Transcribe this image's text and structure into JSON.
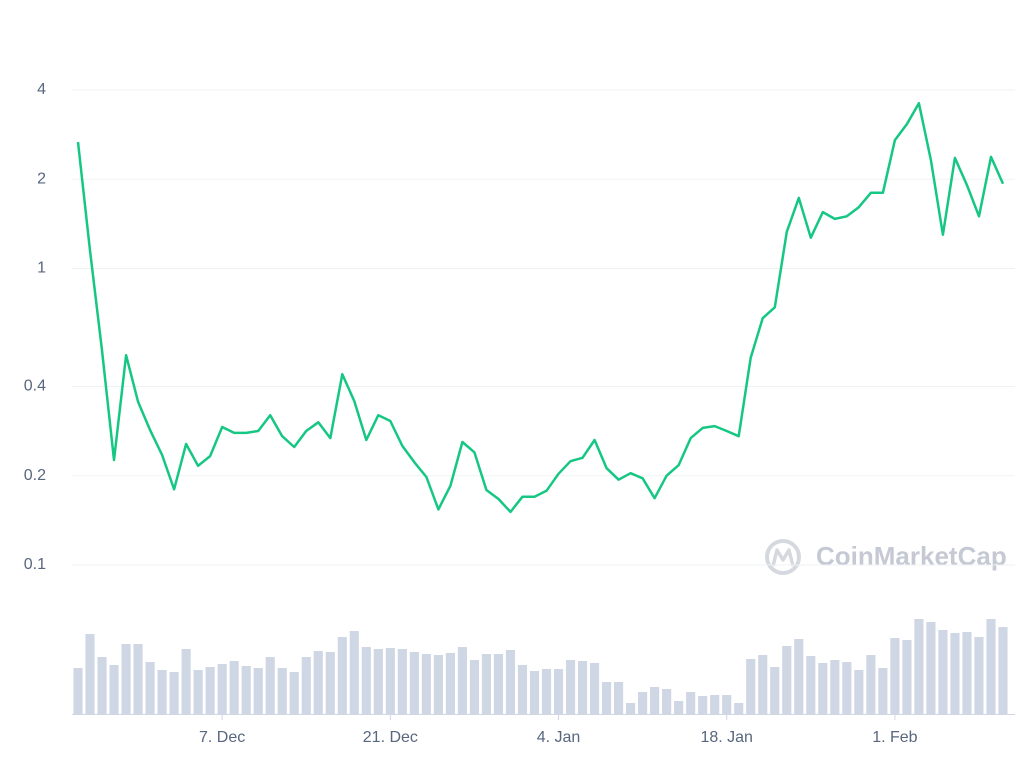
{
  "chart_data": {
    "type": "line",
    "watermark": "CoinMarketCap",
    "x": [
      "25. Nov",
      "26. Nov",
      "27. Nov",
      "28. Nov",
      "29. Nov",
      "30. Nov",
      "1. Dec",
      "2. Dec",
      "3. Dec",
      "4. Dec",
      "5. Dec",
      "6. Dec",
      "7. Dec",
      "8. Dec",
      "9. Dec",
      "10. Dec",
      "11. Dec",
      "12. Dec",
      "13. Dec",
      "14. Dec",
      "15. Dec",
      "16. Dec",
      "17. Dec",
      "18. Dec",
      "19. Dec",
      "20. Dec",
      "21. Dec",
      "22. Dec",
      "23. Dec",
      "24. Dec",
      "25. Dec",
      "26. Dec",
      "27. Dec",
      "28. Dec",
      "29. Dec",
      "30. Dec",
      "31. Dec",
      "1. Jan",
      "2. Jan",
      "3. Jan",
      "4. Jan",
      "5. Jan",
      "6. Jan",
      "7. Jan",
      "8. Jan",
      "9. Jan",
      "10. Jan",
      "11. Jan",
      "12. Jan",
      "13. Jan",
      "14. Jan",
      "15. Jan",
      "16. Jan",
      "17. Jan",
      "18. Jan",
      "19. Jan",
      "20. Jan",
      "21. Jan",
      "22. Jan",
      "23. Jan",
      "24. Jan",
      "25. Jan",
      "26. Jan",
      "27. Jan",
      "28. Jan",
      "29. Jan",
      "30. Jan",
      "31. Jan",
      "1. Feb",
      "2. Feb",
      "3. Feb",
      "4. Feb",
      "5. Feb",
      "6. Feb",
      "7. Feb",
      "8. Feb",
      "9. Feb",
      "10. Feb"
    ],
    "xticks": [
      "7. Dec",
      "21. Dec",
      "4. Jan",
      "18. Jan",
      "1. Feb"
    ],
    "series": [
      {
        "name": "Price",
        "color": "#16c784",
        "values": [
          2.67,
          1.15,
          0.53,
          0.226,
          0.51,
          0.355,
          0.285,
          0.235,
          0.18,
          0.256,
          0.216,
          0.233,
          0.292,
          0.279,
          0.279,
          0.283,
          0.32,
          0.272,
          0.25,
          0.283,
          0.303,
          0.268,
          0.44,
          0.357,
          0.264,
          0.32,
          0.306,
          0.252,
          0.222,
          0.198,
          0.154,
          0.185,
          0.26,
          0.24,
          0.179,
          0.167,
          0.151,
          0.17,
          0.17,
          0.178,
          0.203,
          0.224,
          0.23,
          0.264,
          0.212,
          0.194,
          0.204,
          0.196,
          0.168,
          0.2,
          0.217,
          0.268,
          0.29,
          0.294,
          0.283,
          0.272,
          0.5,
          0.68,
          0.74,
          1.33,
          1.73,
          1.27,
          1.55,
          1.47,
          1.5,
          1.61,
          1.8,
          1.8,
          2.71,
          3.07,
          3.61,
          2.32,
          1.3,
          2.36,
          1.91,
          1.5,
          2.38,
          1.93
        ]
      },
      {
        "name": "Volume",
        "color": "#cfd6e4",
        "axis": "y2",
        "values": [
          46,
          80,
          57,
          49,
          70,
          70,
          52,
          44,
          42,
          65,
          44,
          47,
          50,
          53,
          48,
          46,
          57,
          46,
          42,
          57,
          63,
          62,
          77,
          83,
          67,
          65,
          66,
          65,
          62,
          60,
          59,
          61,
          67,
          54,
          60,
          60,
          64,
          49,
          43,
          45,
          45,
          54,
          53,
          51,
          32,
          32,
          11,
          22,
          27,
          25,
          13,
          22,
          18,
          19,
          19,
          11,
          55,
          59,
          47,
          68,
          75,
          58,
          51,
          54,
          52,
          44,
          59,
          46,
          76,
          74,
          95,
          92,
          84,
          81,
          82,
          77,
          95,
          87
        ]
      }
    ],
    "log_scale": true,
    "ylim": [
      0.1,
      4
    ],
    "yticks": [
      0.1,
      0.2,
      0.4,
      1,
      2,
      4
    ],
    "y2lim": [
      0,
      100
    ],
    "grid": true
  }
}
